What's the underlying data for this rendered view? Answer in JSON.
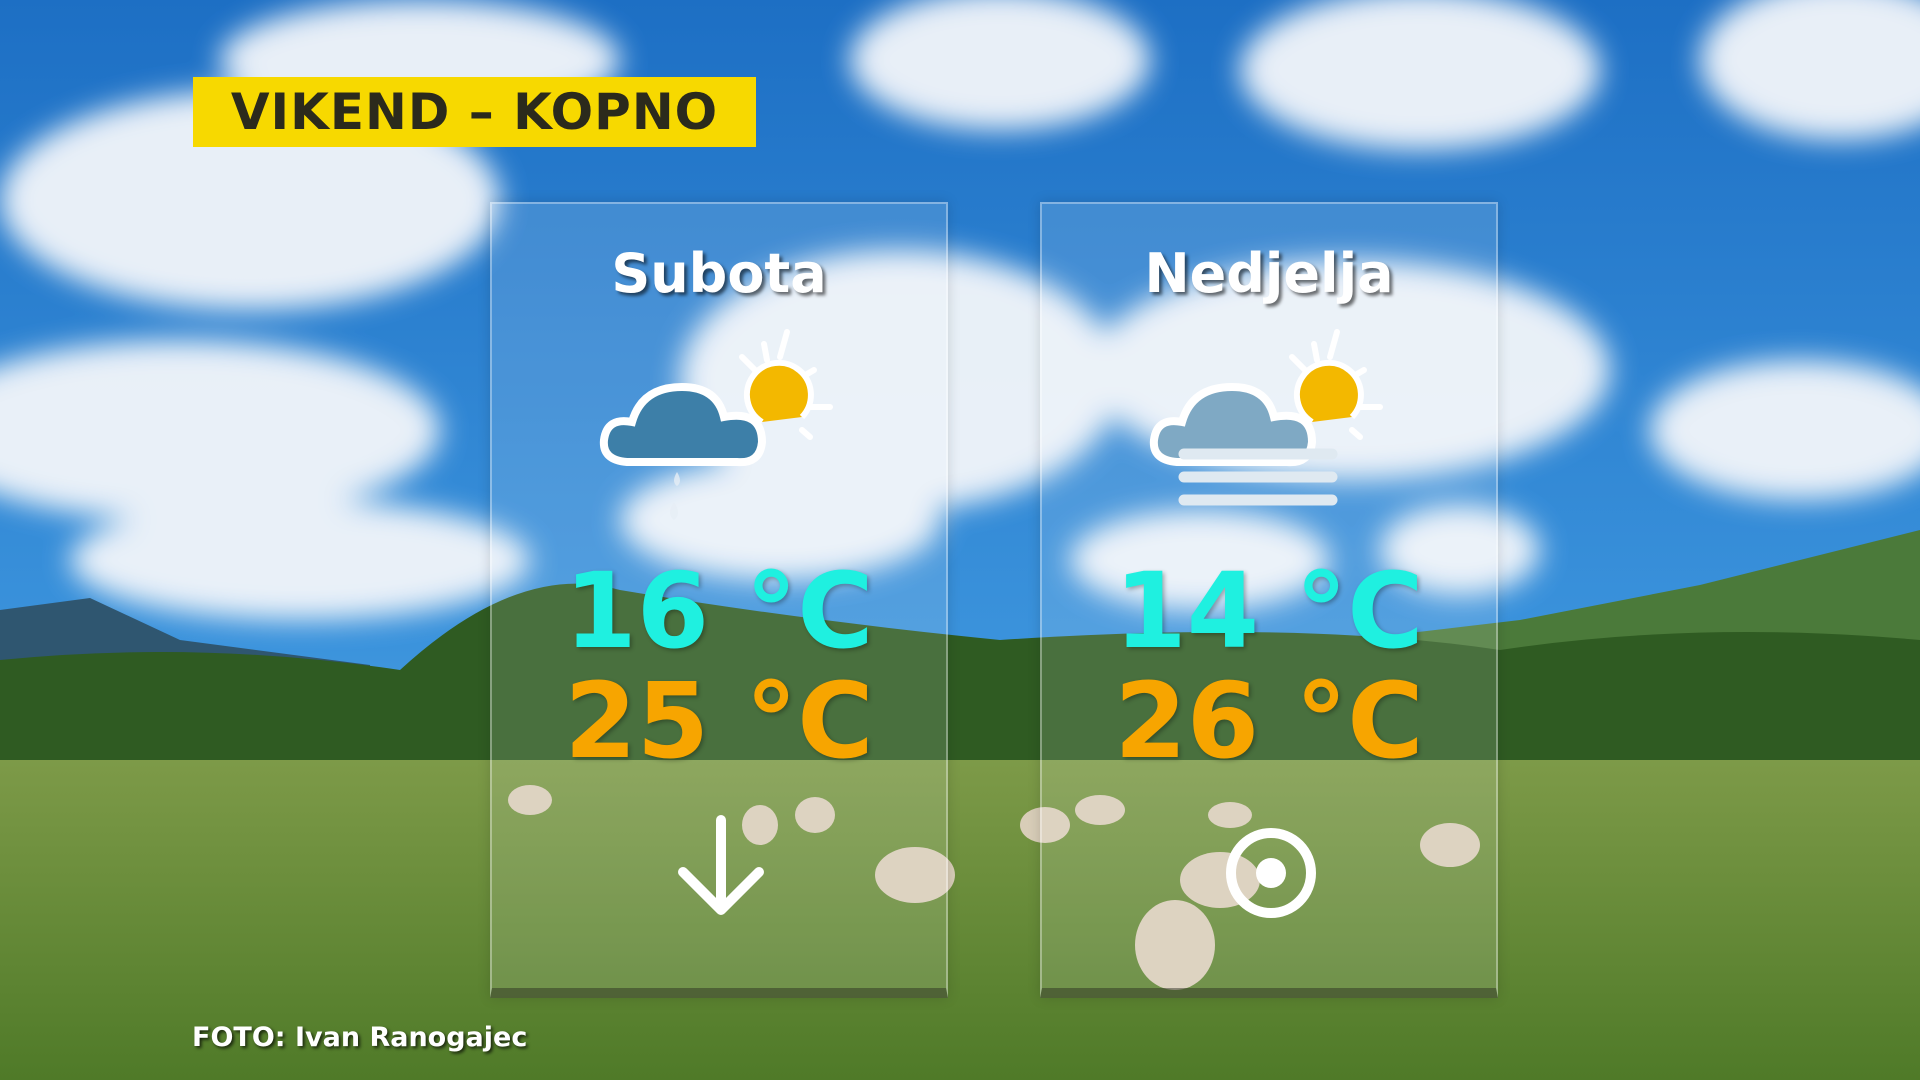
{
  "title": "VIKEND – KOPNO",
  "days": [
    {
      "name": "Subota",
      "icon": "partly-cloudy-rain-icon",
      "low": "16 °C",
      "high": "25 °C",
      "wind_icon": "arrow-down-icon"
    },
    {
      "name": "Nedjelja",
      "icon": "partly-cloudy-fog-icon",
      "low": "14 °C",
      "high": "26 °C",
      "wind_icon": "calm-circle-icon"
    }
  ],
  "credit": "FOTO: Ivan Ranogajec",
  "colors": {
    "banner": "#f7d900",
    "low_temp": "#1ff0e0",
    "high_temp": "#f7a500"
  }
}
